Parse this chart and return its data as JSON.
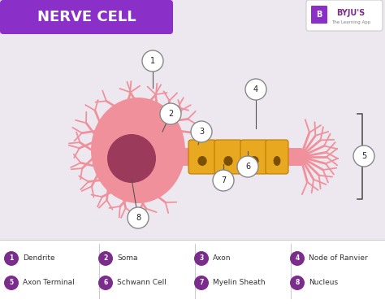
{
  "title": "NERVE CELL",
  "title_bg_color": "#8B2FC9",
  "title_text_color": "#FFFFFF",
  "bg_color": "#EDE8F0",
  "soma_color": "#F0909A",
  "nucleus_color": "#9B3A5A",
  "dendrite_color": "#F0909A",
  "axon_color": "#F0909A",
  "myelin_color": "#E8A820",
  "myelin_dark": "#9B6800",
  "terminal_color": "#F0909A",
  "label_circle_color": "#FFFFFF",
  "label_border_color": "#888888",
  "label_text_color": "#222222",
  "legend_bg": "#FFFFFF",
  "legend_line_color": "#CCCCCC",
  "legend_purple": "#7B2D8B",
  "byju_color": "#7B2D8B",
  "byju_box_color": "#8B2FC9",
  "legend_items": [
    {
      "num": "1",
      "label": "Dendrite"
    },
    {
      "num": "2",
      "label": "Soma"
    },
    {
      "num": "3",
      "label": "Axon"
    },
    {
      "num": "4",
      "label": "Node of Ranvier"
    },
    {
      "num": "5",
      "label": "Axon Terminal"
    },
    {
      "num": "6",
      "label": "Schwann Cell"
    },
    {
      "num": "7",
      "label": "Myelin Sheath"
    },
    {
      "num": "8",
      "label": "Nucleus"
    }
  ]
}
